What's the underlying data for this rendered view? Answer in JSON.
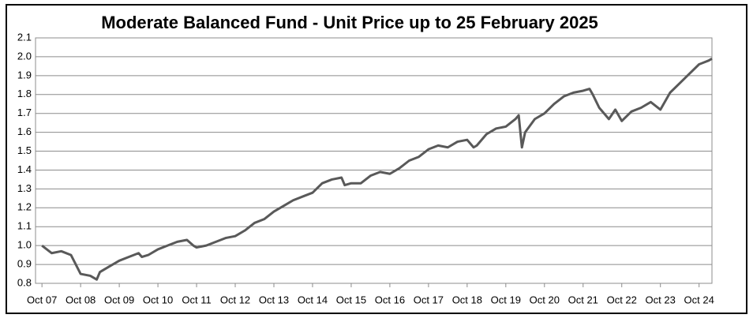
{
  "chart_data": {
    "type": "line",
    "title": "Moderate Balanced Fund - Unit Price up to 25 February 2025",
    "x": [
      "2007-10",
      "2008-01",
      "2008-04",
      "2008-07",
      "2008-10",
      "2009-01",
      "2009-03",
      "2009-04",
      "2009-07",
      "2009-10",
      "2010-01",
      "2010-04",
      "2010-05",
      "2010-07",
      "2010-10",
      "2011-01",
      "2011-04",
      "2011-07",
      "2011-09",
      "2011-10",
      "2012-01",
      "2012-04",
      "2012-07",
      "2012-10",
      "2013-01",
      "2013-04",
      "2013-07",
      "2013-10",
      "2014-01",
      "2014-04",
      "2014-07",
      "2014-10",
      "2015-01",
      "2015-04",
      "2015-07",
      "2015-08",
      "2015-10",
      "2016-01",
      "2016-04",
      "2016-07",
      "2016-10",
      "2017-01",
      "2017-04",
      "2017-07",
      "2017-10",
      "2018-01",
      "2018-04",
      "2018-07",
      "2018-10",
      "2018-12",
      "2019-01",
      "2019-04",
      "2019-07",
      "2019-10",
      "2020-01",
      "2020-02",
      "2020-03",
      "2020-04",
      "2020-07",
      "2020-10",
      "2021-01",
      "2021-04",
      "2021-07",
      "2021-10",
      "2021-12",
      "2022-01",
      "2022-03",
      "2022-06",
      "2022-08",
      "2022-10",
      "2023-01",
      "2023-04",
      "2023-07",
      "2023-10",
      "2024-01",
      "2024-04",
      "2024-07",
      "2024-10",
      "2025-01",
      "2025-02"
    ],
    "series": [
      {
        "name": "Unit Price",
        "color": "#595959",
        "values": [
          1.0,
          0.96,
          0.97,
          0.95,
          0.85,
          0.84,
          0.82,
          0.86,
          0.89,
          0.92,
          0.94,
          0.96,
          0.94,
          0.95,
          0.98,
          1.0,
          1.02,
          1.03,
          1.0,
          0.99,
          1.0,
          1.02,
          1.04,
          1.05,
          1.08,
          1.12,
          1.14,
          1.18,
          1.21,
          1.24,
          1.26,
          1.28,
          1.33,
          1.35,
          1.36,
          1.32,
          1.33,
          1.33,
          1.37,
          1.39,
          1.38,
          1.41,
          1.45,
          1.47,
          1.51,
          1.53,
          1.52,
          1.55,
          1.56,
          1.52,
          1.53,
          1.59,
          1.62,
          1.63,
          1.67,
          1.69,
          1.52,
          1.6,
          1.67,
          1.7,
          1.75,
          1.79,
          1.81,
          1.82,
          1.83,
          1.8,
          1.73,
          1.67,
          1.72,
          1.66,
          1.71,
          1.73,
          1.76,
          1.72,
          1.81,
          1.86,
          1.91,
          1.96,
          1.98,
          1.99
        ]
      }
    ],
    "xlim": [
      "2007-08",
      "2025-02"
    ],
    "xticks": [
      {
        "value": "2007-10",
        "label": "Oct 07"
      },
      {
        "value": "2008-10",
        "label": "Oct 08"
      },
      {
        "value": "2009-10",
        "label": "Oct 09"
      },
      {
        "value": "2010-10",
        "label": "Oct 10"
      },
      {
        "value": "2011-10",
        "label": "Oct 11"
      },
      {
        "value": "2012-10",
        "label": "Oct 12"
      },
      {
        "value": "2013-10",
        "label": "Oct 13"
      },
      {
        "value": "2014-10",
        "label": "Oct 14"
      },
      {
        "value": "2015-10",
        "label": "Oct 15"
      },
      {
        "value": "2016-10",
        "label": "Oct 16"
      },
      {
        "value": "2017-10",
        "label": "Oct 17"
      },
      {
        "value": "2018-10",
        "label": "Oct 18"
      },
      {
        "value": "2019-10",
        "label": "Oct 19"
      },
      {
        "value": "2020-10",
        "label": "Oct 20"
      },
      {
        "value": "2021-10",
        "label": "Oct 21"
      },
      {
        "value": "2022-10",
        "label": "Oct 22"
      },
      {
        "value": "2023-10",
        "label": "Oct 23"
      },
      {
        "value": "2024-10",
        "label": "Oct 24"
      }
    ],
    "ylim": [
      0.8,
      2.1
    ],
    "yticks": [
      {
        "value": 0.8,
        "label": "0.8"
      },
      {
        "value": 0.9,
        "label": "0.9"
      },
      {
        "value": 1.0,
        "label": "1.0"
      },
      {
        "value": 1.1,
        "label": "1.1"
      },
      {
        "value": 1.2,
        "label": "1.2"
      },
      {
        "value": 1.3,
        "label": "1.3"
      },
      {
        "value": 1.4,
        "label": "1.4"
      },
      {
        "value": 1.5,
        "label": "1.5"
      },
      {
        "value": 1.6,
        "label": "1.6"
      },
      {
        "value": 1.7,
        "label": "1.7"
      },
      {
        "value": 1.8,
        "label": "1.8"
      },
      {
        "value": 1.9,
        "label": "1.9"
      },
      {
        "value": 2.0,
        "label": "2.0"
      },
      {
        "value": 2.1,
        "label": "2.1"
      }
    ],
    "grid": true
  }
}
